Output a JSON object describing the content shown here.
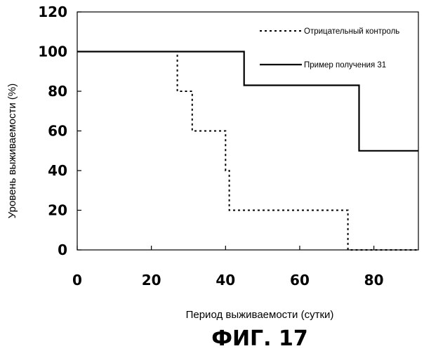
{
  "chart_data": {
    "type": "line",
    "step": true,
    "xlabel": "Период выживаемости (сутки)",
    "ylabel": "Уровень выживаемости (%)",
    "xlim": [
      0,
      92
    ],
    "ylim": [
      0,
      120
    ],
    "xticks": [
      0,
      20,
      40,
      60,
      80
    ],
    "yticks": [
      0,
      20,
      40,
      60,
      80,
      100,
      120
    ],
    "xtick_labels": [
      "0",
      "20",
      "40",
      "60",
      "80"
    ],
    "ytick_labels": [
      "0",
      "20",
      "40",
      "60",
      "80",
      "100",
      "120"
    ],
    "grid": false,
    "legend_position": "top-right",
    "series": [
      {
        "name": "Отрицательный контроль",
        "style": "dotted",
        "color": "#000000",
        "points": [
          [
            0,
            100
          ],
          [
            27,
            100
          ],
          [
            27,
            80
          ],
          [
            31,
            80
          ],
          [
            31,
            60
          ],
          [
            40,
            60
          ],
          [
            40,
            40
          ],
          [
            41,
            40
          ],
          [
            41,
            20
          ],
          [
            73,
            20
          ],
          [
            73,
            0
          ],
          [
            92,
            0
          ]
        ]
      },
      {
        "name": "Пример получения 31",
        "style": "solid",
        "color": "#000000",
        "points": [
          [
            0,
            100
          ],
          [
            45,
            100
          ],
          [
            45,
            83
          ],
          [
            76,
            83
          ],
          [
            76,
            50
          ],
          [
            92,
            50
          ]
        ]
      }
    ]
  },
  "caption": "ФИГ. 17"
}
